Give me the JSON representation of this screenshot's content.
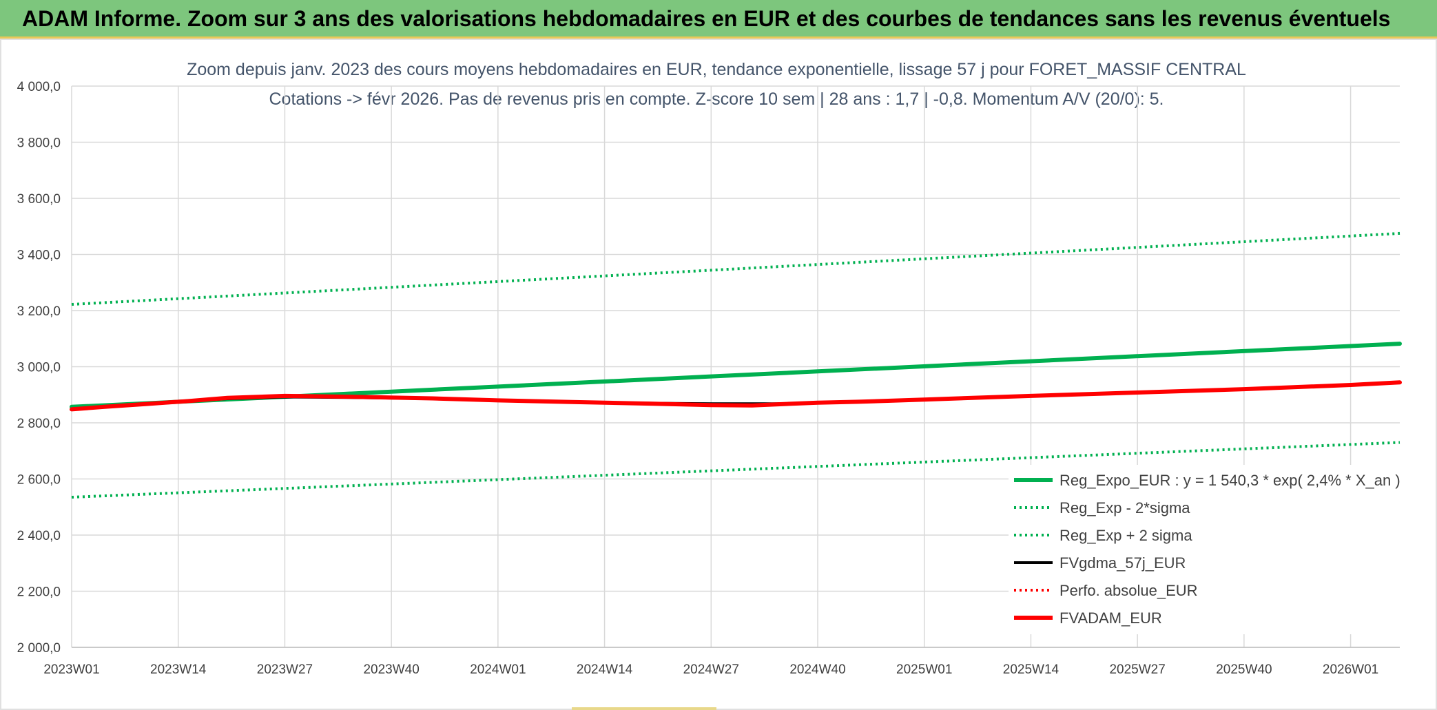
{
  "banner": {
    "title": "ADAM Informe. Zoom sur 3 ans des valorisations hebdomadaires en EUR et des courbes de tendances sans les revenus éventuels"
  },
  "colors": {
    "banner_bg": "#7dc67d",
    "trend": "#00b050",
    "main": "#ff0000",
    "smooth": "#000000",
    "grid": "#d9d9d9",
    "title": "#44546a"
  },
  "chart_data": {
    "type": "line",
    "title": "Zoom depuis janv. 2023 des cours moyens hebdomadaires en EUR, tendance exponentielle, lissage 57 j pour FORET_MASSIF CENTRAL",
    "subtitle": "Cotations -> févr 2026. Pas de revenus pris en compte. Z-score 10 sem | 28 ans : 1,7 | -0,8. Momentum A/V (20/0): 5.",
    "xlabel": "",
    "ylabel": "",
    "ylim": [
      2000,
      4000
    ],
    "y_ticks": [
      "4 000,0",
      "3 800,0",
      "3 600,0",
      "3 400,0",
      "3 200,0",
      "3 000,0",
      "2 800,0",
      "2 600,0",
      "2 400,0",
      "2 200,0",
      "2 000,0"
    ],
    "x_ticks": [
      "2023W01",
      "2023W14",
      "2023W27",
      "2023W40",
      "2024W01",
      "2024W14",
      "2024W27",
      "2024W40",
      "2025W01",
      "2025W14",
      "2025W27",
      "2025W40",
      "2026W01"
    ],
    "x_range": [
      "2023W01",
      "2026W07"
    ],
    "grid": true,
    "legend_position": "bottom-right",
    "series": [
      {
        "name": "Reg_Expo_EUR : y = 1 540,3 * exp( 2,4% *  X_an )",
        "style": "solid-thick",
        "color": "#00b050",
        "x": [
          "2023W01",
          "2026W07"
        ],
        "values": [
          2857,
          3082
        ]
      },
      {
        "name": "Reg_Exp - 2*sigma",
        "style": "dotted",
        "color": "#00b050",
        "x": [
          "2023W01",
          "2026W07"
        ],
        "values": [
          2535,
          2730
        ]
      },
      {
        "name": "Reg_Exp + 2 sigma",
        "style": "dotted",
        "color": "#00b050",
        "x": [
          "2023W01",
          "2026W07"
        ],
        "values": [
          3222,
          3475
        ]
      },
      {
        "name": "FVgdma_57j_EUR",
        "style": "solid",
        "color": "#000000",
        "x": [
          "2023W01",
          "2023W05",
          "2023W10",
          "2023W15",
          "2023W20",
          "2023W27",
          "2023W35",
          "2023W45",
          "2024W01",
          "2024W10",
          "2024W20",
          "2024W27",
          "2024W35",
          "2024W45",
          "2025W01",
          "2025W14",
          "2025W27",
          "2025W40",
          "2026W01",
          "2026W07"
        ],
        "values": [
          2849,
          2858,
          2868,
          2877,
          2886,
          2892,
          2890,
          2886,
          2880,
          2875,
          2870,
          2868,
          2868,
          2874,
          2883,
          2896,
          2908,
          2920,
          2935,
          2943
        ]
      },
      {
        "name": "Perfo. absolue_EUR",
        "style": "dotted",
        "color": "#ff0000",
        "x": [],
        "values": []
      },
      {
        "name": "FVADAM_EUR",
        "style": "solid-thick",
        "color": "#ff0000",
        "x": [
          "2023W01",
          "2023W05",
          "2023W10",
          "2023W15",
          "2023W20",
          "2023W27",
          "2023W35",
          "2023W45",
          "2024W01",
          "2024W10",
          "2024W20",
          "2024W27",
          "2024W32",
          "2024W40",
          "2024W45",
          "2025W01",
          "2025W14",
          "2025W27",
          "2025W40",
          "2026W01",
          "2026W07"
        ],
        "values": [
          2848,
          2857,
          2867,
          2877,
          2889,
          2896,
          2893,
          2887,
          2880,
          2874,
          2868,
          2863,
          2862,
          2872,
          2875,
          2883,
          2896,
          2908,
          2920,
          2935,
          2944
        ]
      }
    ]
  }
}
